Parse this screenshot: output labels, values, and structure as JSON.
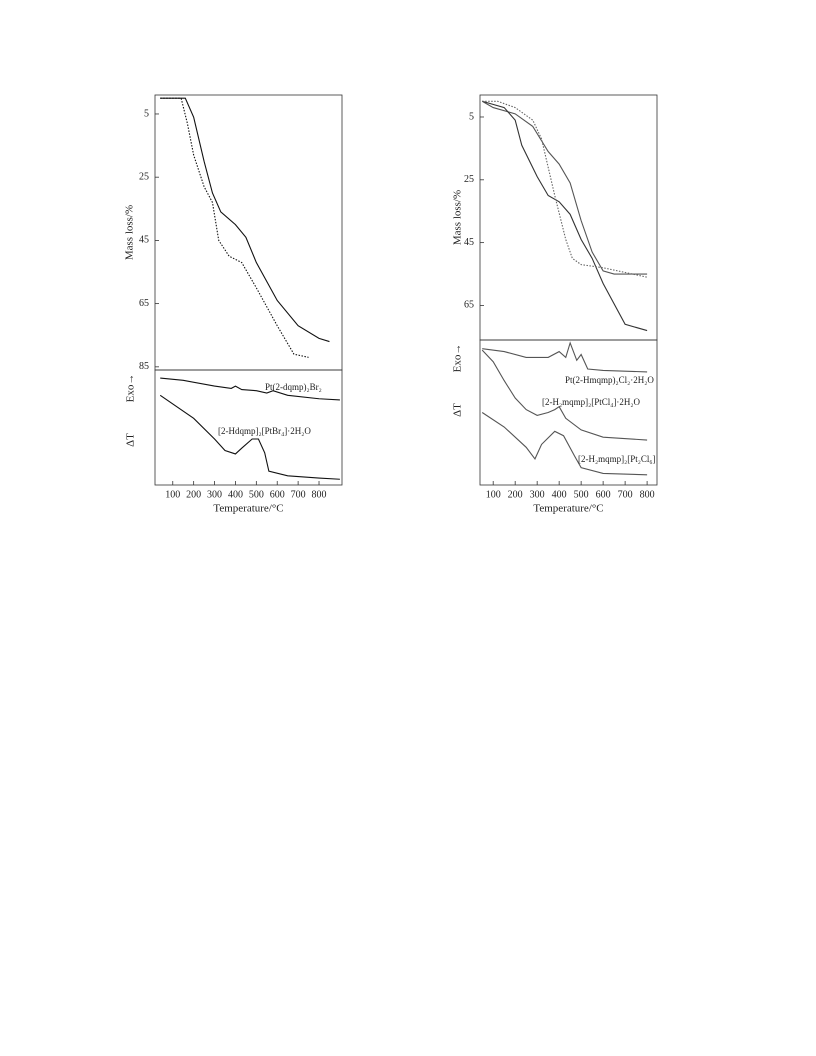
{
  "chart_data": [
    {
      "type": "line",
      "ylabel": "Mass loss/%",
      "invert_y": true,
      "xlim": [
        15,
        910
      ],
      "ylim": [
        -1,
        86
      ],
      "yticks": [
        5,
        25,
        45,
        65,
        85
      ],
      "series": [
        {
          "color": "#111111",
          "dash": "solid",
          "x": [
            40,
            160,
            200,
            250,
            290,
            330,
            400,
            450,
            500,
            600,
            700,
            800,
            850
          ],
          "values": [
            0,
            0,
            6,
            20,
            30,
            36,
            40,
            44,
            52,
            64,
            72,
            76,
            77
          ]
        },
        {
          "color": "#111111",
          "dash": "dotted",
          "x": [
            40,
            140,
            170,
            200,
            250,
            290,
            320,
            370,
            430,
            500,
            600,
            680,
            750
          ],
          "values": [
            0,
            0,
            8,
            18,
            28,
            33,
            45,
            50,
            52,
            60,
            72,
            81,
            82
          ]
        }
      ]
    },
    {
      "type": "line",
      "ylabel": "ΔT",
      "exo_label": "Exo→",
      "xlabel": "Temperature/°C",
      "xlim": [
        15,
        910
      ],
      "ylim": [
        0,
        100
      ],
      "xticks": [
        100,
        200,
        300,
        400,
        500,
        600,
        700,
        800
      ],
      "series": [
        {
          "name": "Pt(2-dqmp)₂Br₂",
          "color": "#111111",
          "dash": "solid",
          "x": [
            40,
            150,
            300,
            380,
            400,
            430,
            500,
            550,
            580,
            650,
            800,
            900
          ],
          "values": [
            93,
            91,
            86,
            84,
            86,
            83,
            82,
            80,
            82,
            78,
            75,
            74
          ]
        },
        {
          "name": "[2-Hdqmp]₂[PtBr₄]·2H₂O",
          "color": "#111111",
          "dash": "solid",
          "x": [
            40,
            120,
            200,
            300,
            350,
            400,
            430,
            480,
            510,
            540,
            560,
            650,
            800,
            900
          ],
          "values": [
            78,
            68,
            58,
            40,
            30,
            27,
            32,
            40,
            40,
            28,
            12,
            8,
            6,
            5
          ]
        }
      ]
    },
    {
      "type": "line",
      "ylabel": "Mass loss/%",
      "invert_y": true,
      "xlim": [
        40,
        845
      ],
      "ylim": [
        -2,
        76
      ],
      "yticks": [
        5,
        25,
        45,
        65
      ],
      "series": [
        {
          "color": "#555555",
          "dash": "solid",
          "x": [
            50,
            100,
            200,
            280,
            350,
            400,
            450,
            500,
            550,
            600,
            650,
            800
          ],
          "values": [
            0,
            2,
            4,
            8,
            16,
            20,
            26,
            38,
            48,
            54,
            55,
            55
          ]
        },
        {
          "color": "#333333",
          "dash": "solid",
          "x": [
            50,
            150,
            200,
            230,
            300,
            350,
            400,
            450,
            500,
            550,
            600,
            700,
            800
          ],
          "values": [
            0,
            2,
            6,
            14,
            24,
            30,
            32,
            36,
            44,
            50,
            58,
            71,
            73
          ]
        },
        {
          "color": "#666666",
          "dash": "dotted",
          "x": [
            50,
            120,
            200,
            280,
            320,
            380,
            430,
            460,
            500,
            600,
            800
          ],
          "values": [
            0,
            0,
            2,
            6,
            12,
            30,
            44,
            50,
            52,
            53,
            56
          ]
        }
      ]
    },
    {
      "type": "line",
      "ylabel": "ΔT",
      "exo_label": "Exo→",
      "xlabel": "Temperature/°C",
      "xlim": [
        40,
        845
      ],
      "ylim": [
        0,
        100
      ],
      "xticks": [
        100,
        200,
        300,
        400,
        500,
        600,
        700,
        800
      ],
      "series": [
        {
          "name": "Pt(2-Hmqmp)₂Cl₂·2H₂O",
          "color": "#555555",
          "dash": "solid",
          "x": [
            50,
            150,
            250,
            350,
            400,
            430,
            450,
            480,
            500,
            530,
            600,
            800
          ],
          "values": [
            94,
            92,
            88,
            88,
            92,
            88,
            98,
            86,
            90,
            80,
            79,
            78
          ]
        },
        {
          "name": "[2-H₂mqmp]₂[PtCl₄]·2H₂O",
          "color": "#555555",
          "dash": "solid",
          "x": [
            50,
            100,
            150,
            200,
            250,
            300,
            350,
            380,
            400,
            430,
            500,
            600,
            800
          ],
          "values": [
            93,
            85,
            72,
            60,
            52,
            48,
            50,
            52,
            54,
            46,
            38,
            33,
            31
          ]
        },
        {
          "name": "[2-H₂mqmp]₂[Pt₂Cl₆]",
          "color": "#555555",
          "dash": "solid",
          "x": [
            50,
            150,
            250,
            290,
            320,
            380,
            420,
            470,
            500,
            600,
            800
          ],
          "values": [
            50,
            40,
            26,
            18,
            28,
            37,
            34,
            20,
            12,
            8,
            7
          ]
        }
      ]
    }
  ]
}
